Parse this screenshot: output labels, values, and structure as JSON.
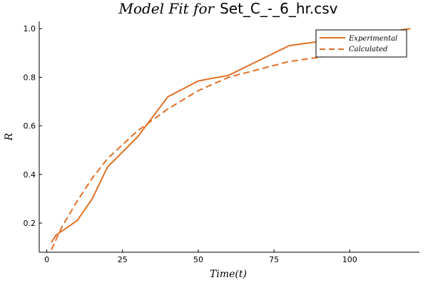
{
  "chart_data": {
    "type": "line",
    "title_math": "Model Fit for",
    "title_text": "Set_C_-_6_hr.csv",
    "xlabel": "Time(t)",
    "ylabel": "R",
    "xlim": [
      -2.5,
      123
    ],
    "ylim": [
      0.08,
      1.03
    ],
    "xticks": [
      0,
      25,
      50,
      75,
      100
    ],
    "yticks": [
      0.2,
      0.4,
      0.6,
      0.8,
      1.0
    ],
    "xtick_labels": [
      "0",
      "25",
      "50",
      "75",
      "100"
    ],
    "ytick_labels": [
      "0.2",
      "0.4",
      "0.6",
      "0.8",
      "1.0"
    ],
    "grid": false,
    "legend_position": "top-right",
    "series_color": "#e26f25",
    "series": [
      {
        "name": "Experimental",
        "style": "solid",
        "x": [
          1.5,
          3,
          10,
          15,
          20,
          30,
          40,
          50,
          60,
          80,
          120
        ],
        "y": [
          0.12,
          0.15,
          0.21,
          0.3,
          0.43,
          0.555,
          0.72,
          0.785,
          0.808,
          0.93,
          1.0
        ]
      },
      {
        "name": "Calculated",
        "style": "dashed",
        "x": [
          1.5,
          5,
          10,
          15,
          20,
          30,
          40,
          50,
          60,
          80,
          100,
          120
        ],
        "y": [
          0.09,
          0.185,
          0.29,
          0.385,
          0.465,
          0.58,
          0.67,
          0.745,
          0.8,
          0.865,
          0.9,
          0.92
        ]
      }
    ]
  }
}
